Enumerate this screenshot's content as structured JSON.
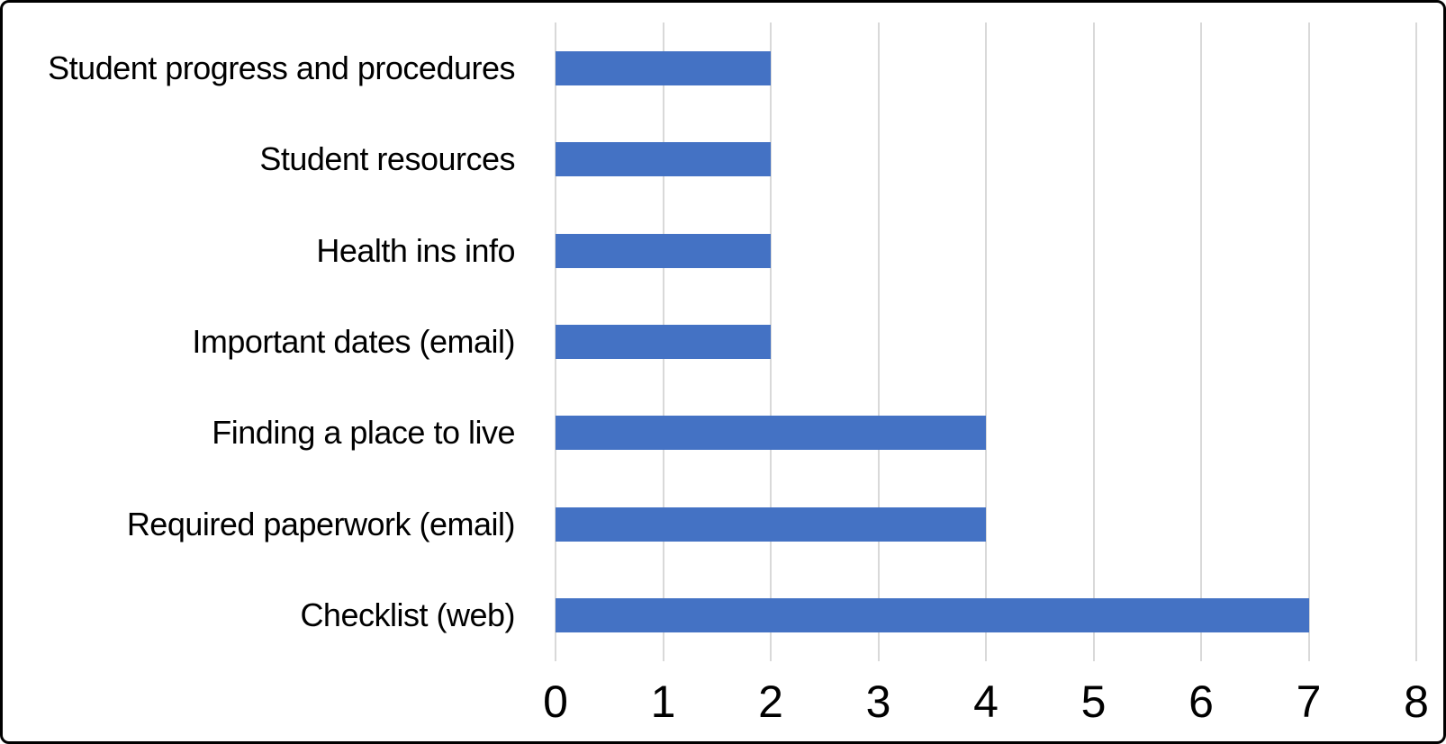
{
  "chart_data": {
    "type": "bar",
    "orientation": "horizontal",
    "title": "",
    "xlabel": "",
    "ylabel": "",
    "categories": [
      "Student progress and procedures",
      "Student resources",
      "Health ins info",
      "Important dates (email)",
      "Finding a place to live",
      "Required paperwork (email)",
      "Checklist (web)"
    ],
    "values": [
      2,
      2,
      2,
      2,
      4,
      4,
      7
    ],
    "xlim": [
      0,
      8
    ],
    "xticks": [
      0,
      1,
      2,
      3,
      4,
      5,
      6,
      7,
      8
    ],
    "grid": "vertical-gridlines-on",
    "legend": "none",
    "colors": {
      "bar": "#4472C4",
      "gridline": "#D9D9D9",
      "text": "#000000",
      "frame_border": "#000000",
      "background": "#FFFFFF"
    }
  }
}
